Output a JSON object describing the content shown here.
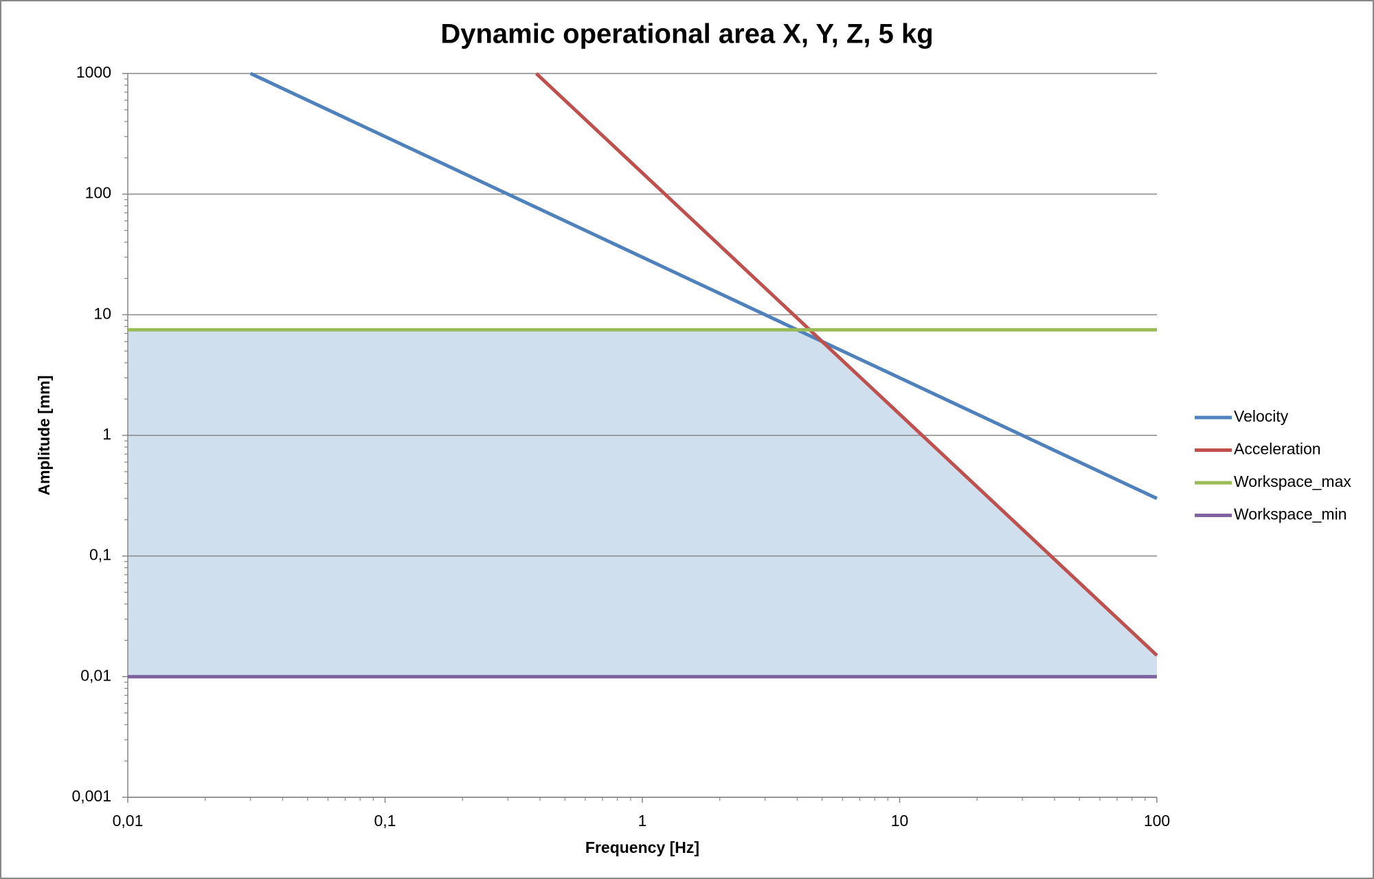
{
  "chart_data": {
    "type": "line",
    "title": "Dynamic operational area X, Y, Z, 5 kg",
    "xlabel": "Frequency [Hz]",
    "ylabel": "Amplitude [mm]",
    "xscale": "log",
    "yscale": "log",
    "xlim": [
      0.01,
      100
    ],
    "ylim": [
      0.001,
      1000
    ],
    "xticks": [
      {
        "value": 0.01,
        "label": "0,01"
      },
      {
        "value": 0.1,
        "label": "0,1"
      },
      1,
      10,
      100
    ],
    "yticks": [
      {
        "value": 0.001,
        "label": "0,001"
      },
      {
        "value": 0.01,
        "label": "0,01"
      },
      {
        "value": 0.1,
        "label": "0,1"
      },
      1,
      10,
      100,
      1000
    ],
    "grid": true,
    "legend": "right",
    "fill_color": "#d0dfee",
    "series": [
      {
        "name": "Velocity",
        "color": "#4f81bd",
        "x": [
          0.03,
          100
        ],
        "values": [
          1000,
          0.3
        ]
      },
      {
        "name": "Acceleration",
        "color": "#c0504d",
        "x": [
          0.387,
          100
        ],
        "values": [
          1000,
          0.015
        ]
      },
      {
        "name": "Workspace_max",
        "color": "#9bbb59",
        "x": [
          0.01,
          100
        ],
        "values": [
          7.5,
          7.5
        ]
      },
      {
        "name": "Workspace_min",
        "color": "#8064a2",
        "x": [
          0.01,
          100
        ],
        "values": [
          0.01,
          0.01
        ]
      }
    ]
  }
}
